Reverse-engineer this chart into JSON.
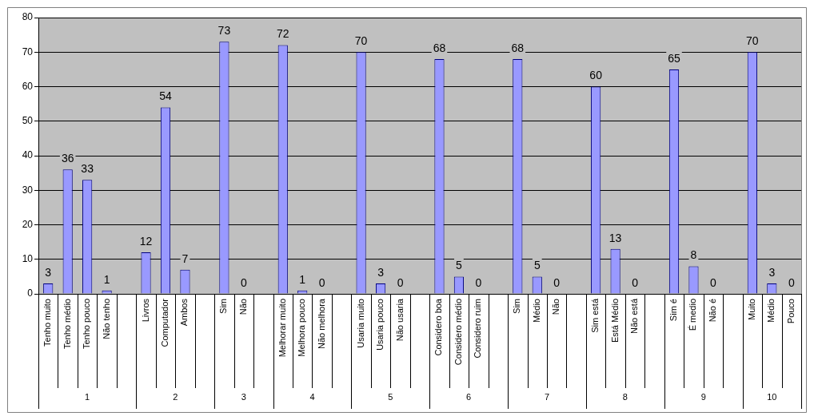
{
  "chart_data": {
    "type": "bar",
    "categories": [
      "Tenho muito",
      "Tenho médio",
      "Tenho pouco",
      "Não tenho",
      null,
      "Livros",
      "Computador",
      "Ambos",
      null,
      "Sim",
      "Não",
      null,
      "Melhorar muito",
      "Melhora pouco",
      "Não melhora",
      null,
      "Usaria muito",
      "Usaria pouco",
      "Não usaria",
      null,
      "Considero boa",
      "Considero médio",
      "Considero ruim",
      null,
      "Sim",
      "Médio",
      "Não",
      null,
      "Sim está",
      "Está Médio",
      "Não está",
      null,
      "Sim é",
      "É medio",
      "Não é",
      null,
      "Muito",
      "Médio",
      "Pouco"
    ],
    "values": [
      3,
      36,
      33,
      1,
      null,
      12,
      54,
      7,
      null,
      73,
      0,
      null,
      72,
      1,
      0,
      null,
      70,
      3,
      0,
      null,
      68,
      5,
      0,
      null,
      68,
      5,
      0,
      null,
      60,
      13,
      0,
      null,
      65,
      8,
      0,
      null,
      70,
      3,
      0
    ],
    "color": "#9999ff",
    "ylim": [
      0,
      80
    ],
    "yticks": [
      0,
      10,
      20,
      30,
      40,
      50,
      60,
      70,
      80
    ],
    "grid": "y",
    "legend": false,
    "data_labels": true,
    "annotations": [
      "1",
      "2",
      "3",
      "4",
      "5",
      "6",
      "7",
      "8",
      "9",
      "10"
    ]
  }
}
